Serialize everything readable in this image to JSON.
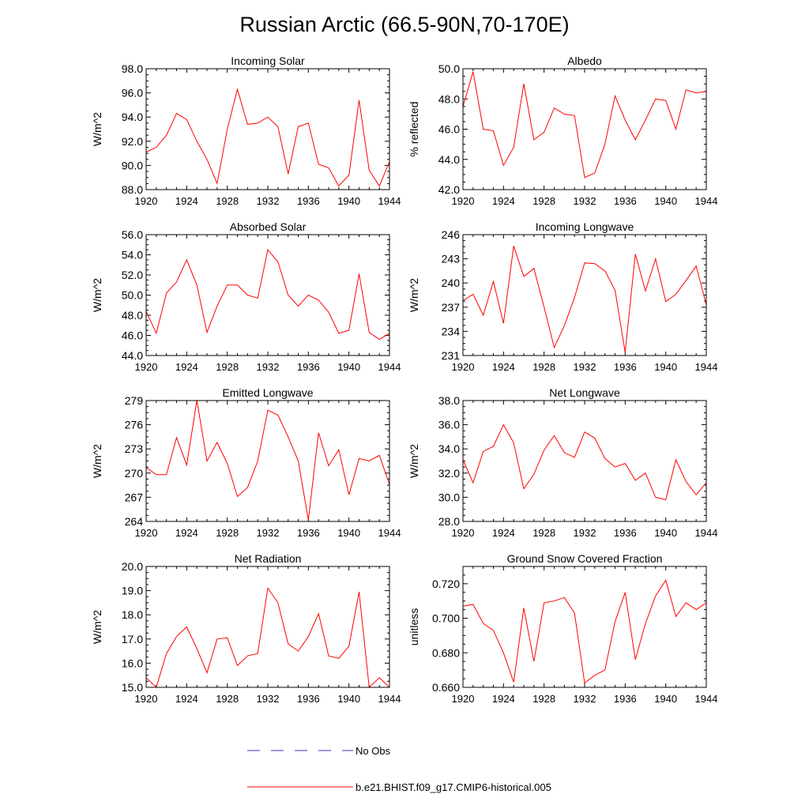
{
  "title": "Russian Arctic (66.5-90N,70-170E)",
  "legend": {
    "obs_label": "No Obs",
    "model_label": "b.e21.BHIST.f09_g17.CMIP6-historical.005",
    "obs_color": "#3333cc",
    "model_color": "#ff0000"
  },
  "chart_data": [
    {
      "type": "line",
      "title": "Incoming Solar",
      "ylabel": "W/m^2",
      "xlabel": "",
      "xlim": [
        1920,
        1944
      ],
      "ylim": [
        88,
        98
      ],
      "xticks": [
        1920,
        1924,
        1928,
        1932,
        1936,
        1940,
        1944
      ],
      "xtick_labels": [
        "1920",
        "1924",
        "1928",
        "1932",
        "1936",
        "1940",
        "1944"
      ],
      "yticks": [
        88,
        90,
        92,
        94,
        96,
        98
      ],
      "ytick_labels": [
        "88.0",
        "90.0",
        "92.0",
        "94.0",
        "96.0",
        "98.0"
      ],
      "x": [
        1920,
        1921,
        1922,
        1923,
        1924,
        1925,
        1926,
        1927,
        1928,
        1929,
        1930,
        1931,
        1932,
        1933,
        1934,
        1935,
        1936,
        1937,
        1938,
        1939,
        1940,
        1941,
        1942,
        1943,
        1944
      ],
      "series": [
        {
          "name": "b.e21.BHIST.f09_g17.CMIP6-historical.005",
          "color": "#ff0000",
          "values": [
            91.1,
            91.5,
            92.5,
            94.3,
            93.8,
            92.0,
            90.5,
            88.5,
            93.0,
            96.3,
            93.4,
            93.5,
            94.0,
            93.2,
            89.3,
            93.2,
            93.5,
            90.1,
            89.8,
            88.3,
            89.2,
            95.4,
            89.6,
            88.3,
            90.3
          ]
        }
      ]
    },
    {
      "type": "line",
      "title": "Albedo",
      "ylabel": "% reflected",
      "xlabel": "",
      "xlim": [
        1920,
        1944
      ],
      "ylim": [
        42,
        50
      ],
      "xticks": [
        1920,
        1924,
        1928,
        1932,
        1936,
        1940,
        1944
      ],
      "xtick_labels": [
        "1920",
        "1924",
        "1928",
        "1932",
        "1936",
        "1940",
        "1944"
      ],
      "yticks": [
        42,
        44,
        46,
        48,
        50
      ],
      "ytick_labels": [
        "42.0",
        "44.0",
        "46.0",
        "48.0",
        "50.0"
      ],
      "x": [
        1920,
        1921,
        1922,
        1923,
        1924,
        1925,
        1926,
        1927,
        1928,
        1929,
        1930,
        1931,
        1932,
        1933,
        1934,
        1935,
        1936,
        1937,
        1938,
        1939,
        1940,
        1941,
        1942,
        1943,
        1944
      ],
      "series": [
        {
          "name": "b.e21.BHIST.f09_g17.CMIP6-historical.005",
          "color": "#ff0000",
          "values": [
            47.5,
            49.8,
            46.0,
            45.9,
            43.6,
            44.8,
            49.0,
            45.3,
            45.8,
            47.4,
            47.0,
            46.9,
            42.8,
            43.1,
            45.0,
            48.2,
            46.6,
            45.3,
            46.6,
            48.0,
            47.9,
            46.0,
            48.6,
            48.4,
            48.5
          ]
        }
      ]
    },
    {
      "type": "line",
      "title": "Absorbed Solar",
      "ylabel": "W/m^2",
      "xlabel": "",
      "xlim": [
        1920,
        1944
      ],
      "ylim": [
        44,
        56
      ],
      "xticks": [
        1920,
        1924,
        1928,
        1932,
        1936,
        1940,
        1944
      ],
      "xtick_labels": [
        "1920",
        "1924",
        "1928",
        "1932",
        "1936",
        "1940",
        "1944"
      ],
      "yticks": [
        44,
        46,
        48,
        50,
        52,
        54,
        56
      ],
      "ytick_labels": [
        "44.0",
        "46.0",
        "48.0",
        "50.0",
        "52.0",
        "54.0",
        "56.0"
      ],
      "x": [
        1920,
        1921,
        1922,
        1923,
        1924,
        1925,
        1926,
        1927,
        1928,
        1929,
        1930,
        1931,
        1932,
        1933,
        1934,
        1935,
        1936,
        1937,
        1938,
        1939,
        1940,
        1941,
        1942,
        1943,
        1944
      ],
      "series": [
        {
          "name": "b.e21.BHIST.f09_g17.CMIP6-historical.005",
          "color": "#ff0000",
          "values": [
            48.4,
            46.2,
            50.2,
            51.3,
            53.5,
            51.0,
            46.3,
            48.9,
            51.0,
            51.0,
            50.0,
            49.7,
            54.5,
            53.3,
            50.0,
            48.9,
            50.0,
            49.5,
            48.3,
            46.2,
            46.5,
            52.1,
            46.3,
            45.6,
            46.2
          ]
        }
      ]
    },
    {
      "type": "line",
      "title": "Incoming Longwave",
      "ylabel": "W/m^2",
      "xlabel": "",
      "xlim": [
        1920,
        1944
      ],
      "ylim": [
        231,
        246
      ],
      "xticks": [
        1920,
        1924,
        1928,
        1932,
        1936,
        1940,
        1944
      ],
      "xtick_labels": [
        "1920",
        "1924",
        "1928",
        "1932",
        "1936",
        "1940",
        "1944"
      ],
      "yticks": [
        231,
        234,
        237,
        240,
        243,
        246
      ],
      "ytick_labels": [
        "231",
        "234",
        "237",
        "240",
        "243",
        "246"
      ],
      "x": [
        1920,
        1921,
        1922,
        1923,
        1924,
        1925,
        1926,
        1927,
        1928,
        1929,
        1930,
        1931,
        1932,
        1933,
        1934,
        1935,
        1936,
        1937,
        1938,
        1939,
        1940,
        1941,
        1942,
        1943,
        1944
      ],
      "series": [
        {
          "name": "b.e21.BHIST.f09_g17.CMIP6-historical.005",
          "color": "#ff0000",
          "values": [
            237.8,
            238.6,
            236.0,
            240.2,
            235.0,
            244.6,
            240.8,
            241.8,
            237.0,
            232.0,
            234.7,
            238.2,
            242.5,
            242.4,
            241.5,
            239.1,
            231.4,
            243.6,
            239.0,
            243.0,
            237.7,
            238.6,
            240.3,
            242.1,
            237.3
          ]
        }
      ]
    },
    {
      "type": "line",
      "title": "Emitted Longwave",
      "ylabel": "W/m^2",
      "xlabel": "",
      "xlim": [
        1920,
        1944
      ],
      "ylim": [
        264,
        279
      ],
      "xticks": [
        1920,
        1924,
        1928,
        1932,
        1936,
        1940,
        1944
      ],
      "xtick_labels": [
        "1920",
        "1924",
        "1928",
        "1932",
        "1936",
        "1940",
        "1944"
      ],
      "yticks": [
        264,
        267,
        270,
        273,
        276,
        279
      ],
      "ytick_labels": [
        "264",
        "267",
        "270",
        "273",
        "276",
        "279"
      ],
      "x": [
        1920,
        1921,
        1922,
        1923,
        1924,
        1925,
        1926,
        1927,
        1928,
        1929,
        1930,
        1931,
        1932,
        1933,
        1934,
        1935,
        1936,
        1937,
        1938,
        1939,
        1940,
        1941,
        1942,
        1943,
        1944
      ],
      "series": [
        {
          "name": "b.e21.BHIST.f09_g17.CMIP6-historical.005",
          "color": "#ff0000",
          "values": [
            270.7,
            269.8,
            269.8,
            274.4,
            271.0,
            279.0,
            271.5,
            273.8,
            271.2,
            267.1,
            268.2,
            271.5,
            277.8,
            277.2,
            274.5,
            271.5,
            264.2,
            275.0,
            270.9,
            272.9,
            267.3,
            271.8,
            271.5,
            272.2,
            268.6
          ]
        }
      ]
    },
    {
      "type": "line",
      "title": "Net Longwave",
      "ylabel": "W/m^2",
      "xlabel": "",
      "xlim": [
        1920,
        1944
      ],
      "ylim": [
        28,
        38
      ],
      "xticks": [
        1920,
        1924,
        1928,
        1932,
        1936,
        1940,
        1944
      ],
      "xtick_labels": [
        "1920",
        "1924",
        "1928",
        "1932",
        "1936",
        "1940",
        "1944"
      ],
      "yticks": [
        28,
        30,
        32,
        34,
        36,
        38
      ],
      "ytick_labels": [
        "28.0",
        "30.0",
        "32.0",
        "34.0",
        "36.0",
        "38.0"
      ],
      "x": [
        1920,
        1921,
        1922,
        1923,
        1924,
        1925,
        1926,
        1927,
        1928,
        1929,
        1930,
        1931,
        1932,
        1933,
        1934,
        1935,
        1936,
        1937,
        1938,
        1939,
        1940,
        1941,
        1942,
        1943,
        1944
      ],
      "series": [
        {
          "name": "b.e21.BHIST.f09_g17.CMIP6-historical.005",
          "color": "#ff0000",
          "values": [
            33.1,
            31.2,
            33.8,
            34.2,
            36.0,
            34.5,
            30.7,
            31.9,
            33.9,
            35.1,
            33.7,
            33.3,
            35.4,
            34.9,
            33.2,
            32.5,
            32.8,
            31.4,
            32.0,
            30.0,
            29.8,
            33.1,
            31.3,
            30.2,
            31.2
          ]
        }
      ]
    },
    {
      "type": "line",
      "title": "Net Radiation",
      "ylabel": "W/m^2",
      "xlabel": "",
      "xlim": [
        1920,
        1944
      ],
      "ylim": [
        15,
        20
      ],
      "xticks": [
        1920,
        1924,
        1928,
        1932,
        1936,
        1940,
        1944
      ],
      "xtick_labels": [
        "1920",
        "1924",
        "1928",
        "1932",
        "1936",
        "1940",
        "1944"
      ],
      "yticks": [
        15,
        16,
        17,
        18,
        19,
        20
      ],
      "ytick_labels": [
        "15.0",
        "16.0",
        "17.0",
        "18.0",
        "19.0",
        "20.0"
      ],
      "x": [
        1920,
        1921,
        1922,
        1923,
        1924,
        1925,
        1926,
        1927,
        1928,
        1929,
        1930,
        1931,
        1932,
        1933,
        1934,
        1935,
        1936,
        1937,
        1938,
        1939,
        1940,
        1941,
        1942,
        1943,
        1944
      ],
      "series": [
        {
          "name": "b.e21.BHIST.f09_g17.CMIP6-historical.005",
          "color": "#ff0000",
          "values": [
            15.4,
            15.0,
            16.4,
            17.1,
            17.5,
            16.6,
            15.6,
            17.0,
            17.05,
            15.9,
            16.3,
            16.4,
            19.1,
            18.5,
            16.8,
            16.5,
            17.1,
            18.05,
            16.3,
            16.2,
            16.7,
            18.95,
            15.0,
            15.4,
            15.0
          ]
        }
      ]
    },
    {
      "type": "line",
      "title": "Ground Snow Covered Fraction",
      "ylabel": "unitless",
      "xlabel": "",
      "xlim": [
        1920,
        1944
      ],
      "ylim": [
        0.66,
        0.73
      ],
      "xticks": [
        1920,
        1924,
        1928,
        1932,
        1936,
        1940,
        1944
      ],
      "xtick_labels": [
        "1920",
        "1924",
        "1928",
        "1932",
        "1936",
        "1940",
        "1944"
      ],
      "yticks": [
        0.66,
        0.68,
        0.7,
        0.72
      ],
      "ytick_labels": [
        "0.660",
        "0.680",
        "0.700",
        "0.720"
      ],
      "x": [
        1920,
        1921,
        1922,
        1923,
        1924,
        1925,
        1926,
        1927,
        1928,
        1929,
        1930,
        1931,
        1932,
        1933,
        1934,
        1935,
        1936,
        1937,
        1938,
        1939,
        1940,
        1941,
        1942,
        1943,
        1944
      ],
      "series": [
        {
          "name": "b.e21.BHIST.f09_g17.CMIP6-historical.005",
          "color": "#ff0000",
          "values": [
            0.707,
            0.708,
            0.697,
            0.693,
            0.68,
            0.663,
            0.706,
            0.675,
            0.709,
            0.71,
            0.712,
            0.703,
            0.6625,
            0.667,
            0.67,
            0.698,
            0.715,
            0.676,
            0.697,
            0.713,
            0.722,
            0.701,
            0.709,
            0.705,
            0.709
          ]
        }
      ]
    }
  ]
}
